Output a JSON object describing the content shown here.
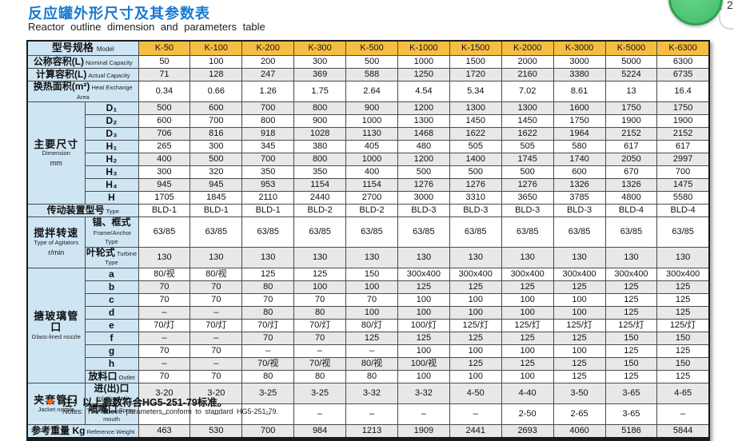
{
  "header": {
    "title_cn": "反应罐外形尺寸及其参数表",
    "title_en": "Reactor outline dimension and parameters table"
  },
  "overlay": {
    "arrow": "↓",
    "count": "2"
  },
  "table": {
    "model_label": {
      "cn": "型号规格",
      "en": "Model"
    },
    "columns": [
      "K-50",
      "K-100",
      "K-200",
      "K-300",
      "K-500",
      "K-1000",
      "K-1500",
      "K-2000",
      "K-3000",
      "K-5000",
      "K-6300"
    ],
    "rows": [
      {
        "label": {
          "cn": "公称容积(L)",
          "en": "Nominal Capacity",
          "colspan": 2
        },
        "values": [
          "50",
          "100",
          "200",
          "300",
          "500",
          "1000",
          "1500",
          "2000",
          "3000",
          "5000",
          "6300"
        ]
      },
      {
        "label": {
          "cn": "计算容积(L)",
          "en": "Actual Capacity",
          "colspan": 2
        },
        "values": [
          "71",
          "128",
          "247",
          "369",
          "588",
          "1250",
          "1720",
          "2160",
          "3380",
          "5224",
          "6735"
        ]
      },
      {
        "label": {
          "cn": "换热面积(m²)",
          "en": "Heat Exchange Area",
          "colspan": 2
        },
        "values": [
          "0.34",
          "0.66",
          "1.26",
          "1.75",
          "2.64",
          "4.54",
          "5.34",
          "7.02",
          "8.61",
          "13",
          "16.4"
        ]
      },
      {
        "label": {
          "cn": "主要尺寸",
          "en": "Dimension",
          "en2": "mm",
          "rowspan": 8
        },
        "sub": {
          "cn": "D₁"
        },
        "values": [
          "500",
          "600",
          "700",
          "800",
          "900",
          "1200",
          "1300",
          "1300",
          "1600",
          "1750",
          "1750"
        ]
      },
      {
        "sub": {
          "cn": "D₂"
        },
        "values": [
          "600",
          "700",
          "800",
          "900",
          "1000",
          "1300",
          "1450",
          "1450",
          "1750",
          "1900",
          "1900"
        ]
      },
      {
        "sub": {
          "cn": "D₃"
        },
        "values": [
          "706",
          "816",
          "918",
          "1028",
          "1130",
          "1468",
          "1622",
          "1622",
          "1964",
          "2152",
          "2152"
        ]
      },
      {
        "sub": {
          "cn": "H₁"
        },
        "values": [
          "265",
          "300",
          "345",
          "380",
          "405",
          "480",
          "505",
          "505",
          "580",
          "617",
          "617"
        ]
      },
      {
        "sub": {
          "cn": "H₂"
        },
        "values": [
          "400",
          "500",
          "700",
          "800",
          "1000",
          "1200",
          "1400",
          "1745",
          "1740",
          "2050",
          "2997"
        ]
      },
      {
        "sub": {
          "cn": "H₃"
        },
        "values": [
          "300",
          "320",
          "350",
          "350",
          "400",
          "500",
          "500",
          "500",
          "600",
          "670",
          "700"
        ]
      },
      {
        "sub": {
          "cn": "H₄"
        },
        "values": [
          "945",
          "945",
          "953",
          "1154",
          "1154",
          "1276",
          "1276",
          "1276",
          "1326",
          "1326",
          "1475"
        ]
      },
      {
        "sub": {
          "cn": "H"
        },
        "values": [
          "1705",
          "1845",
          "2110",
          "2440",
          "2700",
          "3000",
          "3310",
          "3650",
          "3785",
          "4800",
          "5580"
        ]
      },
      {
        "label": {
          "cn": "传动装置型号",
          "en": "Type",
          "colspan": 2
        },
        "values": [
          "BLD-1",
          "BLD-1",
          "BLD-1",
          "BLD-2",
          "BLD-2",
          "BLD-3",
          "BLD-3",
          "BLD-3",
          "BLD-3",
          "BLD-4",
          "BLD-4"
        ]
      },
      {
        "label": {
          "cn": "搅拌转速",
          "en": "Type of Agitators",
          "en2": "r/min",
          "rowspan": 2
        },
        "sub": {
          "cn": "锚、框式",
          "en": "Frame/Anchor Type"
        },
        "values": [
          "63/85",
          "63/85",
          "63/85",
          "63/85",
          "63/85",
          "63/85",
          "63/85",
          "63/85",
          "63/85",
          "63/85",
          "63/85"
        ]
      },
      {
        "sub": {
          "cn": "叶轮式",
          "en": "Turbine Type"
        },
        "values": [
          "130",
          "130",
          "130",
          "130",
          "130",
          "130",
          "130",
          "130",
          "130",
          "130",
          "130"
        ]
      },
      {
        "label": {
          "cn": "搪玻璃管口",
          "en": "Glass-lined nozzle",
          "rowspan": 9
        },
        "sub": {
          "cn": "a"
        },
        "values": [
          "80/视",
          "80/视",
          "125",
          "125",
          "150",
          "300x400",
          "300x400",
          "300x400",
          "300x400",
          "300x400",
          "300x400"
        ]
      },
      {
        "sub": {
          "cn": "b"
        },
        "values": [
          "70",
          "70",
          "80",
          "100",
          "100",
          "125",
          "125",
          "125",
          "125",
          "125",
          "125"
        ]
      },
      {
        "sub": {
          "cn": "c"
        },
        "values": [
          "70",
          "70",
          "70",
          "70",
          "70",
          "100",
          "100",
          "100",
          "100",
          "125",
          "125"
        ]
      },
      {
        "sub": {
          "cn": "d"
        },
        "values": [
          "–",
          "–",
          "80",
          "80",
          "100",
          "100",
          "100",
          "100",
          "100",
          "125",
          "125"
        ]
      },
      {
        "sub": {
          "cn": "e"
        },
        "values": [
          "70/灯",
          "70/灯",
          "70/灯",
          "70/灯",
          "80/灯",
          "100/灯",
          "125/灯",
          "125/灯",
          "125/灯",
          "125/灯",
          "125/灯"
        ]
      },
      {
        "sub": {
          "cn": "f"
        },
        "values": [
          "–",
          "–",
          "70",
          "70",
          "125",
          "125",
          "125",
          "125",
          "125",
          "150",
          "150"
        ]
      },
      {
        "sub": {
          "cn": "g"
        },
        "values": [
          "70",
          "70",
          "–",
          "–",
          "–",
          "100",
          "100",
          "100",
          "100",
          "125",
          "125"
        ]
      },
      {
        "sub": {
          "cn": "h"
        },
        "values": [
          "–",
          "–",
          "70/视",
          "70/视",
          "80/视",
          "100/视",
          "125",
          "125",
          "125",
          "150",
          "150"
        ]
      },
      {
        "sub": {
          "cn": "放料口",
          "en": "Outlet"
        },
        "values": [
          "70",
          "70",
          "80",
          "80",
          "80",
          "100",
          "100",
          "100",
          "125",
          "125",
          "125"
        ]
      },
      {
        "label": {
          "cn": "夹套管口",
          "en": "Jacket nozzle",
          "rowspan": 2
        },
        "sub": {
          "cn": "进(出)口",
          "en": "Inlet(outlet)"
        },
        "values": [
          "3-20",
          "3-20",
          "3-25",
          "3-25",
          "3-32",
          "3-32",
          "4-50",
          "4-40",
          "3-50",
          "3-65",
          "4-65"
        ]
      },
      {
        "sub": {
          "cn": "喷嘴口",
          "en": "Spray mouth"
        },
        "values": [
          "–",
          "–",
          "–",
          "–",
          "–",
          "–",
          "–",
          "2-50",
          "2-65",
          "3-65",
          "–"
        ]
      },
      {
        "label": {
          "cn": "参考重量 Kg",
          "en": "Reference Weight",
          "colspan": 2
        },
        "values": [
          "463",
          "530",
          "700",
          "984",
          "1213",
          "1909",
          "2441",
          "2693",
          "4060",
          "5186",
          "5844"
        ]
      }
    ]
  },
  "note": {
    "bullet": "◆",
    "cn": "注：以上参数符合HG5-251-79标准。",
    "en": "Notes: The above parameters conform to standard HG5-251-79."
  },
  "colors": {
    "title_blue": "#1679D2",
    "header_gold": "#F5BE42",
    "label_blue": "#CEE5F4",
    "stripe_gray": "#E8E8E8",
    "note_orange": "#E8680F",
    "circle_green": "#3DBB66"
  }
}
